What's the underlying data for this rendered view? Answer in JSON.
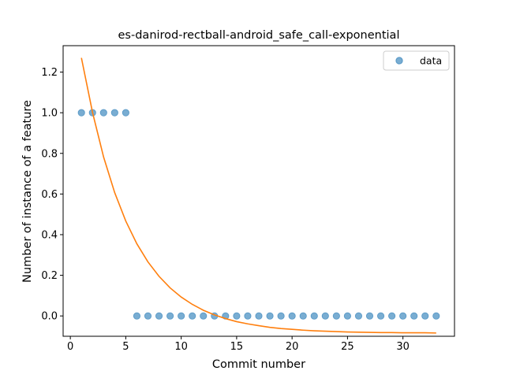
{
  "chart_data": {
    "type": "scatter",
    "title": "es-danirod-rectball-android_safe_call-exponential",
    "xlabel": "Commit number",
    "ylabel": "Number of instance of a feature",
    "xlim": [
      -0.65,
      34.65
    ],
    "ylim": [
      -0.1,
      1.33
    ],
    "xticks": [
      0,
      5,
      10,
      15,
      20,
      25,
      30
    ],
    "xtick_labels": [
      "0",
      "5",
      "10",
      "15",
      "20",
      "25",
      "30"
    ],
    "yticks": [
      0.0,
      0.2,
      0.4,
      0.6,
      0.8,
      1.0,
      1.2
    ],
    "ytick_labels": [
      "0.0",
      "0.2",
      "0.4",
      "0.6",
      "0.8",
      "1.0",
      "1.2"
    ],
    "grid": false,
    "legend_position": "top-right",
    "series": [
      {
        "name": "data",
        "kind": "scatter",
        "color": "#1f77b4",
        "x": [
          1,
          2,
          3,
          4,
          5,
          6,
          7,
          8,
          9,
          10,
          11,
          12,
          13,
          14,
          15,
          16,
          17,
          18,
          19,
          20,
          21,
          22,
          23,
          24,
          25,
          26,
          27,
          28,
          29,
          30,
          31,
          32,
          33
        ],
        "y": [
          1,
          1,
          1,
          1,
          1,
          0,
          0,
          0,
          0,
          0,
          0,
          0,
          0,
          0,
          0,
          0,
          0,
          0,
          0,
          0,
          0,
          0,
          0,
          0,
          0,
          0,
          0,
          0,
          0,
          0,
          0,
          0,
          0
        ]
      },
      {
        "kind": "line",
        "color": "#ff7f0e",
        "x": [
          1,
          2,
          3,
          4,
          5,
          6,
          7,
          8,
          9,
          10,
          11,
          12,
          13,
          14,
          15,
          16,
          17,
          18,
          19,
          20,
          21,
          22,
          23,
          24,
          25,
          26,
          27,
          28,
          29,
          30,
          31,
          32,
          33
        ],
        "y": [
          1.27,
          1.002,
          0.782,
          0.607,
          0.467,
          0.355,
          0.266,
          0.195,
          0.138,
          0.093,
          0.057,
          0.028,
          0.005,
          -0.013,
          -0.028,
          -0.039,
          -0.048,
          -0.056,
          -0.062,
          -0.066,
          -0.07,
          -0.073,
          -0.075,
          -0.077,
          -0.079,
          -0.08,
          -0.081,
          -0.082,
          -0.082,
          -0.083,
          -0.083,
          -0.083,
          -0.084
        ]
      }
    ]
  }
}
